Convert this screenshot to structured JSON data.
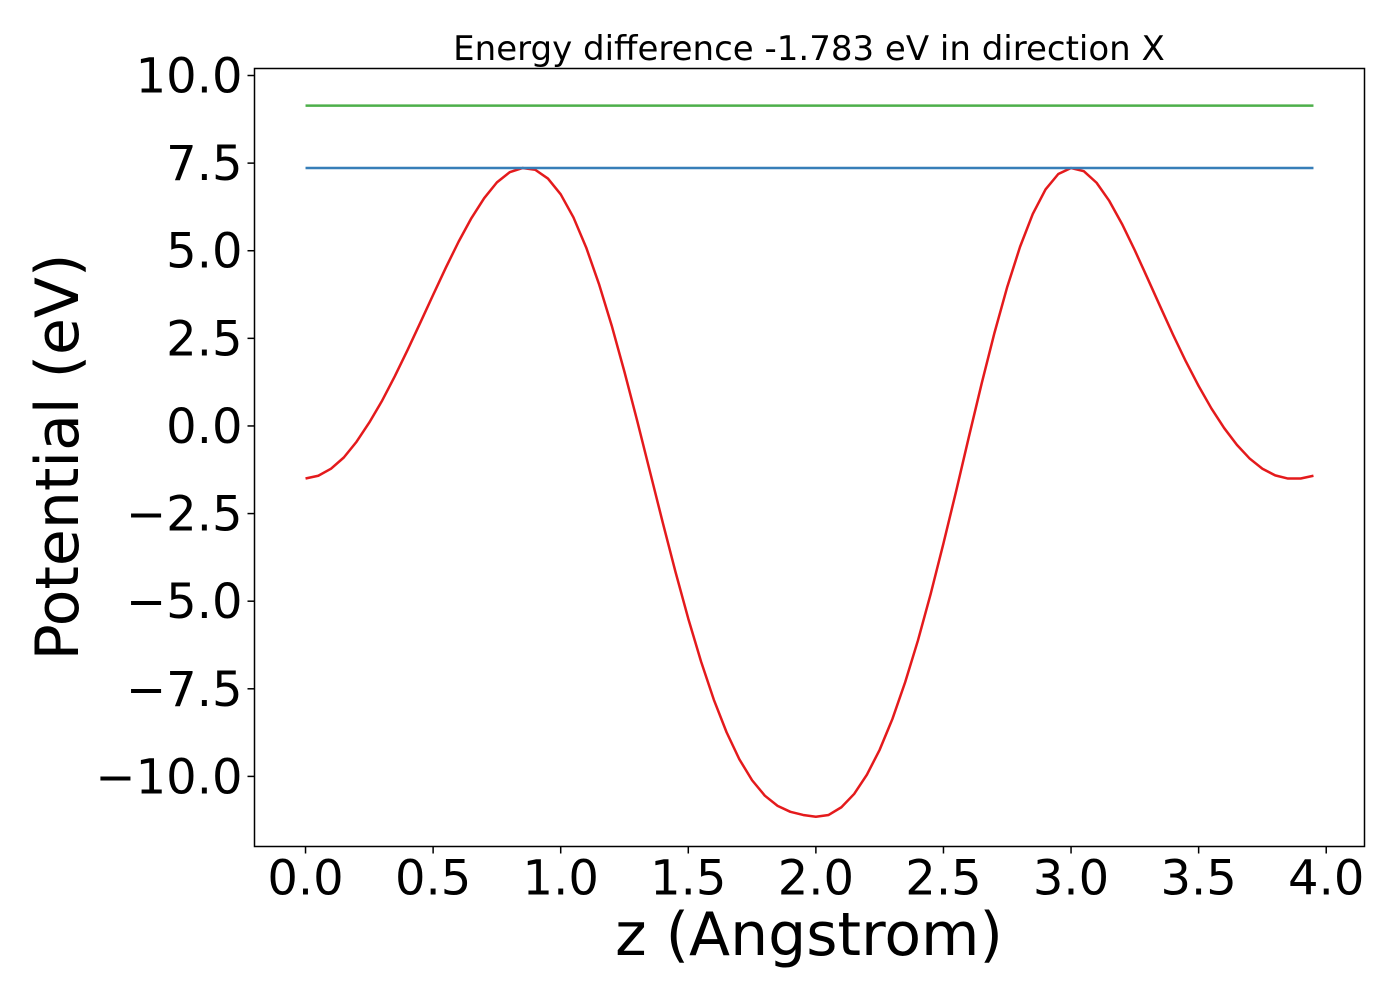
{
  "chart_data": {
    "type": "line",
    "title": "Energy difference -1.783 eV in direction X",
    "xlabel": "z (Angstrom)",
    "ylabel": "Potential (eV)",
    "xlim": [
      -0.2,
      4.15
    ],
    "ylim": [
      -12.0,
      10.2
    ],
    "x_ticks": [
      0.0,
      0.5,
      1.0,
      1.5,
      2.0,
      2.5,
      3.0,
      3.5,
      4.0
    ],
    "x_tick_labels": [
      "0.0",
      "0.5",
      "1.0",
      "1.5",
      "2.0",
      "2.5",
      "3.0",
      "3.5",
      "4.0"
    ],
    "y_ticks": [
      10.0,
      7.5,
      5.0,
      2.5,
      0.0,
      -2.5,
      -5.0,
      -7.5,
      -10.0
    ],
    "y_tick_labels": [
      "10.0",
      "7.5",
      "5.0",
      "2.5",
      "0.0",
      "−2.5",
      "−5.0",
      "−7.5",
      "−10.0"
    ],
    "grid": false,
    "series": [
      {
        "color": "#e41a1c",
        "x": [
          0.0,
          0.05,
          0.1,
          0.15,
          0.2,
          0.25,
          0.3,
          0.35,
          0.4,
          0.45,
          0.5,
          0.55,
          0.6,
          0.65,
          0.7,
          0.75,
          0.8,
          0.85,
          0.9,
          0.95,
          1.0,
          1.05,
          1.1,
          1.15,
          1.2,
          1.25,
          1.3,
          1.35,
          1.4,
          1.45,
          1.5,
          1.55,
          1.6,
          1.65,
          1.7,
          1.75,
          1.8,
          1.85,
          1.9,
          1.95,
          2.0,
          2.05,
          2.1,
          2.15,
          2.2,
          2.25,
          2.3,
          2.35,
          2.4,
          2.45,
          2.5,
          2.55,
          2.6,
          2.65,
          2.7,
          2.75,
          2.8,
          2.85,
          2.9,
          2.95,
          3.0,
          3.05,
          3.1,
          3.15,
          3.2,
          3.25,
          3.3,
          3.35,
          3.4,
          3.45,
          3.5,
          3.55,
          3.6,
          3.65,
          3.7,
          3.75,
          3.8,
          3.85,
          3.9,
          3.95
        ],
        "values": [
          -1.5,
          -1.42,
          -1.22,
          -0.9,
          -0.45,
          0.1,
          0.72,
          1.42,
          2.17,
          2.95,
          3.74,
          4.52,
          5.26,
          5.93,
          6.5,
          6.95,
          7.24,
          7.36,
          7.31,
          7.06,
          6.61,
          5.95,
          5.09,
          4.05,
          2.86,
          1.54,
          0.14,
          -1.31,
          -2.76,
          -4.17,
          -5.5,
          -6.72,
          -7.81,
          -8.74,
          -9.51,
          -10.11,
          -10.55,
          -10.84,
          -11.01,
          -11.1,
          -11.15,
          -11.1,
          -10.88,
          -10.5,
          -9.95,
          -9.24,
          -8.36,
          -7.31,
          -6.12,
          -4.79,
          -3.35,
          -1.85,
          -0.3,
          1.22,
          2.66,
          3.97,
          5.11,
          6.05,
          6.75,
          7.19,
          7.36,
          7.27,
          6.94,
          6.42,
          5.76,
          5.01,
          4.21,
          3.4,
          2.6,
          1.84,
          1.14,
          0.5,
          -0.06,
          -0.54,
          -0.93,
          -1.22,
          -1.41,
          -1.5,
          -1.5,
          -1.42
        ]
      },
      {
        "color": "#377eb8",
        "x": [
          0.0,
          3.95
        ],
        "values": [
          7.36,
          7.36
        ]
      },
      {
        "color": "#4daf4a",
        "x": [
          0.0,
          3.95
        ],
        "values": [
          9.14,
          9.14
        ]
      }
    ]
  }
}
